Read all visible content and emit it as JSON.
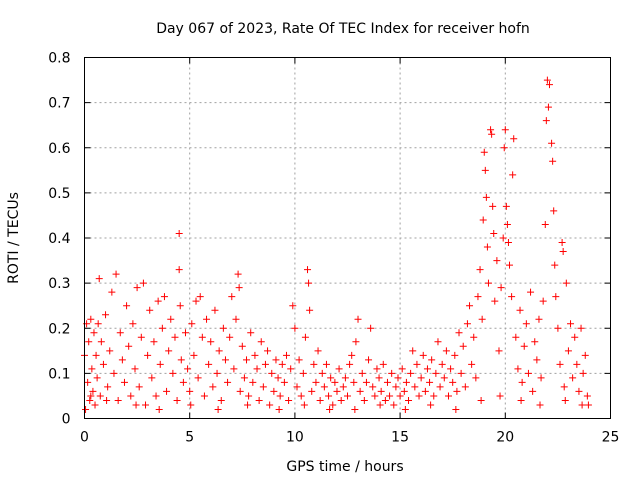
{
  "chart_data": {
    "type": "scatter",
    "title": "Day 067 of 2023, Rate Of TEC Index for receiver hofn",
    "xlabel": "GPS time / hours",
    "ylabel": "ROTI / TECUs",
    "xlim": [
      0,
      25
    ],
    "ylim": [
      0,
      0.8
    ],
    "xticks": [
      0,
      5,
      10,
      15,
      20,
      25
    ],
    "xtick_labels": [
      "0",
      "5",
      "10",
      "15",
      "20",
      "25"
    ],
    "yticks": [
      0,
      0.1,
      0.2,
      0.3,
      0.4,
      0.5,
      0.6,
      0.7,
      0.8
    ],
    "ytick_labels": [
      "0",
      "0.1",
      "0.2",
      "0.3",
      "0.4",
      "0.5",
      "0.6",
      "0.7",
      "0.8"
    ],
    "grid": true,
    "marker": "+",
    "color": "#ff0000",
    "series": [
      {
        "points": [
          [
            0.0,
            0.14
          ],
          [
            0.05,
            0.02
          ],
          [
            0.1,
            0.21
          ],
          [
            0.15,
            0.08
          ],
          [
            0.2,
            0.17
          ],
          [
            0.25,
            0.04
          ],
          [
            0.3,
            0.22
          ],
          [
            0.35,
            0.11
          ],
          [
            0.4,
            0.06
          ],
          [
            0.45,
            0.19
          ],
          [
            0.5,
            0.03
          ],
          [
            0.55,
            0.14
          ],
          [
            0.6,
            0.09
          ],
          [
            0.65,
            0.21
          ],
          [
            0.7,
            0.31
          ],
          [
            0.75,
            0.05
          ],
          [
            0.8,
            0.17
          ],
          [
            0.9,
            0.12
          ],
          [
            1.0,
            0.23
          ],
          [
            1.1,
            0.07
          ],
          [
            1.2,
            0.15
          ],
          [
            1.3,
            0.28
          ],
          [
            1.4,
            0.1
          ],
          [
            1.5,
            0.32
          ],
          [
            1.6,
            0.04
          ],
          [
            1.7,
            0.19
          ],
          [
            1.8,
            0.13
          ],
          [
            1.9,
            0.08
          ],
          [
            2.0,
            0.25
          ],
          [
            2.1,
            0.16
          ],
          [
            2.2,
            0.05
          ],
          [
            2.3,
            0.21
          ],
          [
            2.4,
            0.11
          ],
          [
            2.5,
            0.29
          ],
          [
            2.6,
            0.07
          ],
          [
            2.7,
            0.18
          ],
          [
            2.8,
            0.3
          ],
          [
            2.9,
            0.03
          ],
          [
            3.0,
            0.14
          ],
          [
            3.1,
            0.24
          ],
          [
            3.2,
            0.09
          ],
          [
            3.3,
            0.17
          ],
          [
            3.4,
            0.05
          ],
          [
            3.5,
            0.26
          ],
          [
            3.6,
            0.12
          ],
          [
            3.7,
            0.2
          ],
          [
            3.8,
            0.27
          ],
          [
            3.9,
            0.06
          ],
          [
            4.0,
            0.15
          ],
          [
            4.1,
            0.22
          ],
          [
            4.2,
            0.1
          ],
          [
            4.3,
            0.18
          ],
          [
            4.4,
            0.04
          ],
          [
            4.5,
            0.41
          ],
          [
            4.5,
            0.33
          ],
          [
            4.55,
            0.25
          ],
          [
            4.6,
            0.13
          ],
          [
            4.7,
            0.08
          ],
          [
            4.8,
            0.19
          ],
          [
            4.9,
            0.11
          ],
          [
            5.0,
            0.06
          ],
          [
            5.1,
            0.21
          ],
          [
            5.2,
            0.14
          ],
          [
            5.3,
            0.26
          ],
          [
            5.4,
            0.09
          ],
          [
            5.5,
            0.27
          ],
          [
            5.6,
            0.18
          ],
          [
            5.7,
            0.05
          ],
          [
            5.8,
            0.22
          ],
          [
            5.9,
            0.12
          ],
          [
            6.0,
            0.17
          ],
          [
            6.1,
            0.07
          ],
          [
            6.2,
            0.24
          ],
          [
            6.3,
            0.1
          ],
          [
            6.4,
            0.15
          ],
          [
            6.5,
            0.04
          ],
          [
            6.6,
            0.2
          ],
          [
            6.7,
            0.13
          ],
          [
            6.8,
            0.08
          ],
          [
            6.9,
            0.18
          ],
          [
            7.0,
            0.27
          ],
          [
            7.1,
            0.11
          ],
          [
            7.2,
            0.22
          ],
          [
            7.3,
            0.32
          ],
          [
            7.35,
            0.29
          ],
          [
            7.4,
            0.06
          ],
          [
            7.5,
            0.16
          ],
          [
            7.6,
            0.09
          ],
          [
            7.7,
            0.13
          ],
          [
            7.8,
            0.05
          ],
          [
            7.9,
            0.19
          ],
          [
            8.0,
            0.08
          ],
          [
            8.1,
            0.14
          ],
          [
            8.2,
            0.11
          ],
          [
            8.3,
            0.04
          ],
          [
            8.4,
            0.17
          ],
          [
            8.5,
            0.07
          ],
          [
            8.6,
            0.12
          ],
          [
            8.7,
            0.15
          ],
          [
            8.8,
            0.03
          ],
          [
            8.9,
            0.1
          ],
          [
            9.0,
            0.06
          ],
          [
            9.1,
            0.13
          ],
          [
            9.2,
            0.09
          ],
          [
            9.3,
            0.05
          ],
          [
            9.4,
            0.12
          ],
          [
            9.5,
            0.08
          ],
          [
            9.6,
            0.14
          ],
          [
            9.7,
            0.04
          ],
          [
            9.8,
            0.11
          ],
          [
            9.9,
            0.25
          ],
          [
            10.0,
            0.2
          ],
          [
            10.1,
            0.07
          ],
          [
            10.2,
            0.13
          ],
          [
            10.3,
            0.05
          ],
          [
            10.4,
            0.1
          ],
          [
            10.5,
            0.18
          ],
          [
            10.6,
            0.33
          ],
          [
            10.65,
            0.3
          ],
          [
            10.7,
            0.24
          ],
          [
            10.8,
            0.06
          ],
          [
            10.9,
            0.12
          ],
          [
            11.0,
            0.08
          ],
          [
            11.1,
            0.15
          ],
          [
            11.2,
            0.04
          ],
          [
            11.3,
            0.1
          ],
          [
            11.4,
            0.07
          ],
          [
            11.5,
            0.12
          ],
          [
            11.6,
            0.05
          ],
          [
            11.7,
            0.09
          ],
          [
            11.8,
            0.03
          ],
          [
            11.9,
            0.08
          ],
          [
            12.0,
            0.06
          ],
          [
            12.1,
            0.11
          ],
          [
            12.2,
            0.04
          ],
          [
            12.3,
            0.07
          ],
          [
            12.4,
            0.09
          ],
          [
            12.5,
            0.05
          ],
          [
            12.6,
            0.12
          ],
          [
            12.7,
            0.14
          ],
          [
            12.8,
            0.08
          ],
          [
            12.9,
            0.17
          ],
          [
            13.0,
            0.22
          ],
          [
            13.1,
            0.06
          ],
          [
            13.2,
            0.1
          ],
          [
            13.3,
            0.04
          ],
          [
            13.4,
            0.08
          ],
          [
            13.5,
            0.13
          ],
          [
            13.6,
            0.2
          ],
          [
            13.7,
            0.07
          ],
          [
            13.8,
            0.05
          ],
          [
            13.9,
            0.11
          ],
          [
            14.0,
            0.09
          ],
          [
            14.1,
            0.06
          ],
          [
            14.2,
            0.12
          ],
          [
            14.3,
            0.04
          ],
          [
            14.4,
            0.08
          ],
          [
            14.5,
            0.05
          ],
          [
            14.6,
            0.1
          ],
          [
            14.7,
            0.03
          ],
          [
            14.8,
            0.07
          ],
          [
            14.9,
            0.09
          ],
          [
            15.0,
            0.05
          ],
          [
            15.1,
            0.11
          ],
          [
            15.2,
            0.06
          ],
          [
            15.3,
            0.08
          ],
          [
            15.4,
            0.04
          ],
          [
            15.5,
            0.1
          ],
          [
            15.6,
            0.15
          ],
          [
            15.7,
            0.07
          ],
          [
            15.8,
            0.12
          ],
          [
            15.9,
            0.05
          ],
          [
            16.0,
            0.09
          ],
          [
            16.1,
            0.14
          ],
          [
            16.2,
            0.06
          ],
          [
            16.3,
            0.11
          ],
          [
            16.4,
            0.08
          ],
          [
            16.5,
            0.13
          ],
          [
            16.6,
            0.05
          ],
          [
            16.7,
            0.1
          ],
          [
            16.8,
            0.17
          ],
          [
            16.9,
            0.07
          ],
          [
            17.0,
            0.12
          ],
          [
            17.1,
            0.09
          ],
          [
            17.2,
            0.15
          ],
          [
            17.3,
            0.05
          ],
          [
            17.4,
            0.11
          ],
          [
            17.5,
            0.08
          ],
          [
            17.6,
            0.14
          ],
          [
            17.7,
            0.06
          ],
          [
            17.8,
            0.19
          ],
          [
            17.9,
            0.1
          ],
          [
            18.0,
            0.16
          ],
          [
            18.1,
            0.07
          ],
          [
            18.2,
            0.21
          ],
          [
            18.3,
            0.25
          ],
          [
            18.4,
            0.12
          ],
          [
            18.5,
            0.18
          ],
          [
            18.6,
            0.09
          ],
          [
            18.7,
            0.27
          ],
          [
            18.8,
            0.33
          ],
          [
            18.9,
            0.22
          ],
          [
            18.95,
            0.44
          ],
          [
            19.0,
            0.59
          ],
          [
            19.05,
            0.55
          ],
          [
            19.1,
            0.49
          ],
          [
            19.15,
            0.38
          ],
          [
            19.2,
            0.3
          ],
          [
            19.3,
            0.64
          ],
          [
            19.35,
            0.63
          ],
          [
            19.4,
            0.47
          ],
          [
            19.45,
            0.41
          ],
          [
            19.5,
            0.26
          ],
          [
            19.6,
            0.35
          ],
          [
            19.7,
            0.15
          ],
          [
            19.8,
            0.29
          ],
          [
            19.9,
            0.4
          ],
          [
            19.95,
            0.6
          ],
          [
            20.0,
            0.64
          ],
          [
            20.05,
            0.47
          ],
          [
            20.1,
            0.43
          ],
          [
            20.15,
            0.39
          ],
          [
            20.2,
            0.34
          ],
          [
            20.3,
            0.27
          ],
          [
            20.35,
            0.54
          ],
          [
            20.4,
            0.62
          ],
          [
            20.5,
            0.18
          ],
          [
            20.6,
            0.11
          ],
          [
            20.7,
            0.24
          ],
          [
            20.8,
            0.08
          ],
          [
            20.9,
            0.16
          ],
          [
            21.0,
            0.21
          ],
          [
            21.1,
            0.1
          ],
          [
            21.2,
            0.28
          ],
          [
            21.3,
            0.06
          ],
          [
            21.4,
            0.17
          ],
          [
            21.5,
            0.13
          ],
          [
            21.6,
            0.22
          ],
          [
            21.7,
            0.09
          ],
          [
            21.8,
            0.26
          ],
          [
            21.9,
            0.43
          ],
          [
            21.95,
            0.66
          ],
          [
            22.0,
            0.75
          ],
          [
            22.05,
            0.69
          ],
          [
            22.1,
            0.74
          ],
          [
            22.2,
            0.61
          ],
          [
            22.25,
            0.57
          ],
          [
            22.3,
            0.46
          ],
          [
            22.35,
            0.34
          ],
          [
            22.4,
            0.27
          ],
          [
            22.5,
            0.2
          ],
          [
            22.6,
            0.12
          ],
          [
            22.7,
            0.39
          ],
          [
            22.75,
            0.37
          ],
          [
            22.8,
            0.07
          ],
          [
            22.9,
            0.3
          ],
          [
            23.0,
            0.15
          ],
          [
            23.1,
            0.21
          ],
          [
            23.2,
            0.09
          ],
          [
            23.3,
            0.18
          ],
          [
            23.4,
            0.12
          ],
          [
            23.5,
            0.06
          ],
          [
            23.6,
            0.2
          ],
          [
            23.7,
            0.1
          ],
          [
            23.8,
            0.14
          ],
          [
            23.9,
            0.05
          ],
          [
            23.95,
            0.03
          ],
          [
            0.3,
            0.05
          ],
          [
            1.05,
            0.04
          ],
          [
            2.45,
            0.03
          ],
          [
            3.55,
            0.02
          ],
          [
            5.05,
            0.03
          ],
          [
            6.35,
            0.02
          ],
          [
            7.75,
            0.03
          ],
          [
            9.25,
            0.02
          ],
          [
            10.45,
            0.03
          ],
          [
            11.65,
            0.02
          ],
          [
            12.85,
            0.02
          ],
          [
            14.05,
            0.03
          ],
          [
            15.25,
            0.02
          ],
          [
            16.45,
            0.03
          ],
          [
            17.65,
            0.02
          ],
          [
            18.85,
            0.04
          ],
          [
            19.75,
            0.05
          ],
          [
            20.75,
            0.04
          ],
          [
            21.65,
            0.03
          ],
          [
            22.85,
            0.04
          ],
          [
            23.65,
            0.03
          ]
        ]
      }
    ]
  }
}
